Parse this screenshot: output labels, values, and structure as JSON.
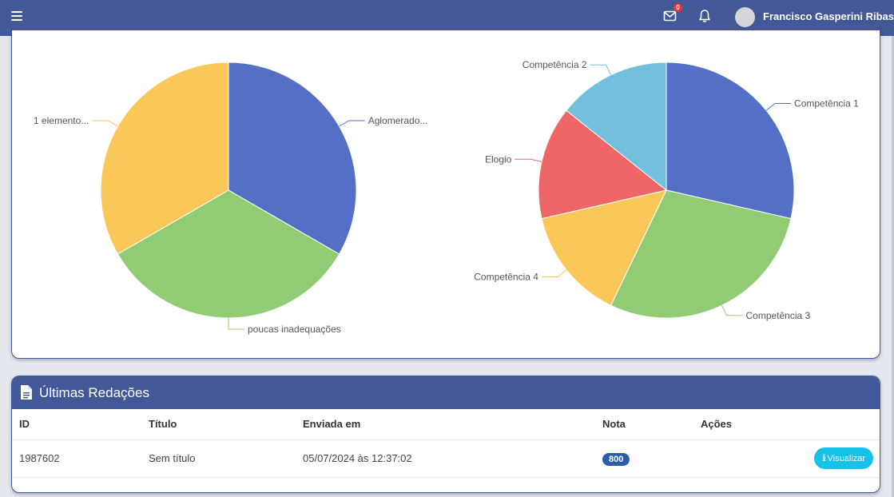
{
  "header": {
    "menu_icon": "hamburger-icon",
    "mail_icon": "envelope-icon",
    "mail_badge": "0",
    "bell_icon": "bell-icon",
    "user_name": "Francisco Gasperini Ribas",
    "bar_color": "#435897"
  },
  "chart_data": [
    {
      "type": "pie",
      "title": "",
      "slices": [
        {
          "label": "Aglomerado...",
          "value": 1,
          "color": "#5470c6"
        },
        {
          "label": "poucas inadequações",
          "value": 1,
          "color": "#91cc75"
        },
        {
          "label": "1 elemento...",
          "value": 1,
          "color": "#fac858"
        }
      ]
    },
    {
      "type": "pie",
      "title": "",
      "slices": [
        {
          "label": "Competência 1",
          "value": 200,
          "color": "#5470c6"
        },
        {
          "label": "Competência 3",
          "value": 200,
          "color": "#91cc75"
        },
        {
          "label": "Competência 4",
          "value": 100,
          "color": "#fac858"
        },
        {
          "label": "Elogio",
          "value": 100,
          "color": "#ee6666"
        },
        {
          "label": "Competência 2",
          "value": 100,
          "color": "#73c0de"
        }
      ]
    }
  ],
  "essays": {
    "title": "Últimas Redações",
    "icon": "document-icon",
    "columns": {
      "id": "ID",
      "title": "Título",
      "sent": "Enviada em",
      "grade": "Nota",
      "actions": "Ações"
    },
    "rows": [
      {
        "id": "1987602",
        "title": "Sem título",
        "sent": "05/07/2024 às 12:37:02",
        "grade": "800",
        "action_label": "Visualizar",
        "action_icon": "info-icon"
      }
    ]
  }
}
